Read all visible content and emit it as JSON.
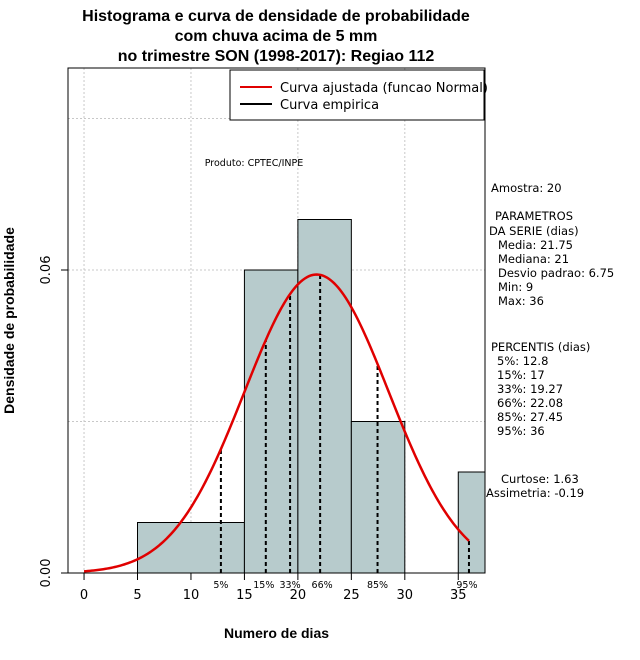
{
  "chart_data": {
    "type": "histogram",
    "title": [
      "Histograma e curva de densidade de probabilidade",
      "com chuva acima de 5 mm",
      "no trimestre SON (1998-2017): Regiao 112"
    ],
    "xlabel": "Numero de dias",
    "ylabel": "Densidade de probabilidade",
    "xlim": [
      -1.5,
      37.5
    ],
    "ylim": [
      0,
      0.1
    ],
    "xticks": [
      0,
      5,
      10,
      15,
      20,
      25,
      30,
      35
    ],
    "xtick_labels": [
      "0",
      "5",
      "10",
      "15",
      "20",
      "25",
      "30",
      "35"
    ],
    "yticks": [
      0,
      0.06
    ],
    "ytick_labels": [
      "0.00",
      "0.06"
    ],
    "grid": true,
    "grid_x": [
      0,
      10,
      20,
      30
    ],
    "grid_y": [
      0,
      0.03,
      0.06,
      0.09
    ],
    "bins": [
      {
        "x0": 5,
        "x1": 15,
        "density": 0.01
      },
      {
        "x0": 15,
        "x1": 20,
        "density": 0.06
      },
      {
        "x0": 20,
        "x1": 25,
        "density": 0.07
      },
      {
        "x0": 25,
        "x1": 30,
        "density": 0.03
      },
      {
        "x0": 35,
        "x1": 37.5,
        "density": 0.02
      }
    ],
    "bar_color": "#b7cbcc",
    "normal_fit": {
      "mean": 21.75,
      "sd": 6.75,
      "x_range": [
        0,
        36
      ],
      "color": "#e00000"
    },
    "percentile_lines": [
      {
        "label": "5%",
        "x": 12.8
      },
      {
        "label": "15%",
        "x": 17
      },
      {
        "label": "33%",
        "x": 19.27
      },
      {
        "label": "66%",
        "x": 22.08
      },
      {
        "label": "85%",
        "x": 27.45
      },
      {
        "label": "95%",
        "x": 36
      }
    ],
    "legend": {
      "position": "top-right",
      "entries": [
        {
          "label": "Curva ajustada (funcao Normal)",
          "color": "#e00000"
        },
        {
          "label": "Curva empirica",
          "color": "#000000"
        }
      ]
    },
    "annotation": "Produto: CPTEC/INPE",
    "side_text": [
      "Amostra: 20",
      "PARAMETROS",
      "DA SERIE (dias)",
      "Media: 21.75",
      "Mediana: 21",
      "Desvio padrao: 6.75",
      "Min: 9",
      "Max: 36",
      "PERCENTIS (dias)",
      "5%: 12.8",
      "15%: 17",
      "33%: 19.27",
      "66%: 22.08",
      "85%: 27.45",
      "95%: 36",
      "Curtose: 1.63",
      "Assimetria: -0.19"
    ]
  }
}
